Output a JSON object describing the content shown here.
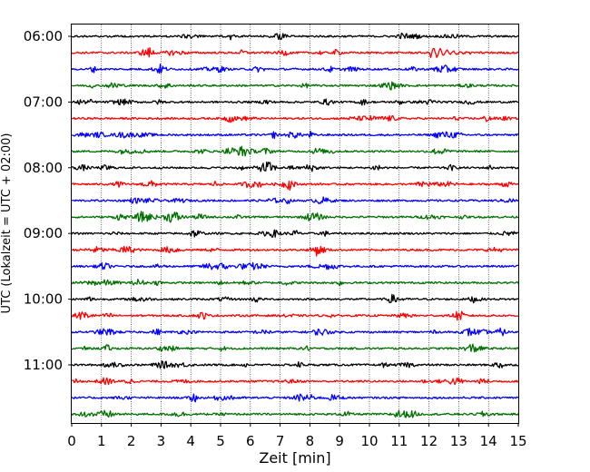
{
  "chart_data": {
    "type": "line",
    "title": "",
    "xlabel": "Zeit  [min]",
    "ylabel": "UTC (Lokalzeit = UTC + 02:00)",
    "xlim": [
      0,
      15
    ],
    "x_ticks": [
      "0",
      "1",
      "2",
      "3",
      "4",
      "5",
      "6",
      "7",
      "8",
      "9",
      "10",
      "11",
      "12",
      "13",
      "14",
      "15"
    ],
    "y_tick_labels": [
      "06:00",
      "07:00",
      "08:00",
      "09:00",
      "10:00",
      "11:00"
    ],
    "row_start_times": [
      "06:00",
      "06:15",
      "06:30",
      "06:45",
      "07:00",
      "07:15",
      "07:30",
      "07:45",
      "08:00",
      "08:15",
      "08:30",
      "08:45",
      "09:00",
      "09:15",
      "09:30",
      "09:45",
      "10:00",
      "10:15",
      "10:30",
      "10:45",
      "11:00",
      "11:15",
      "11:30",
      "11:45"
    ],
    "row_colors": [
      "#000000",
      "#ff0000",
      "#0000ff",
      "#007000"
    ],
    "grid": "vertical dotted at each minute",
    "notable_events": [
      {
        "row_start": "06:15",
        "minute": 12.1,
        "description": "larger transient oscillation"
      }
    ]
  }
}
